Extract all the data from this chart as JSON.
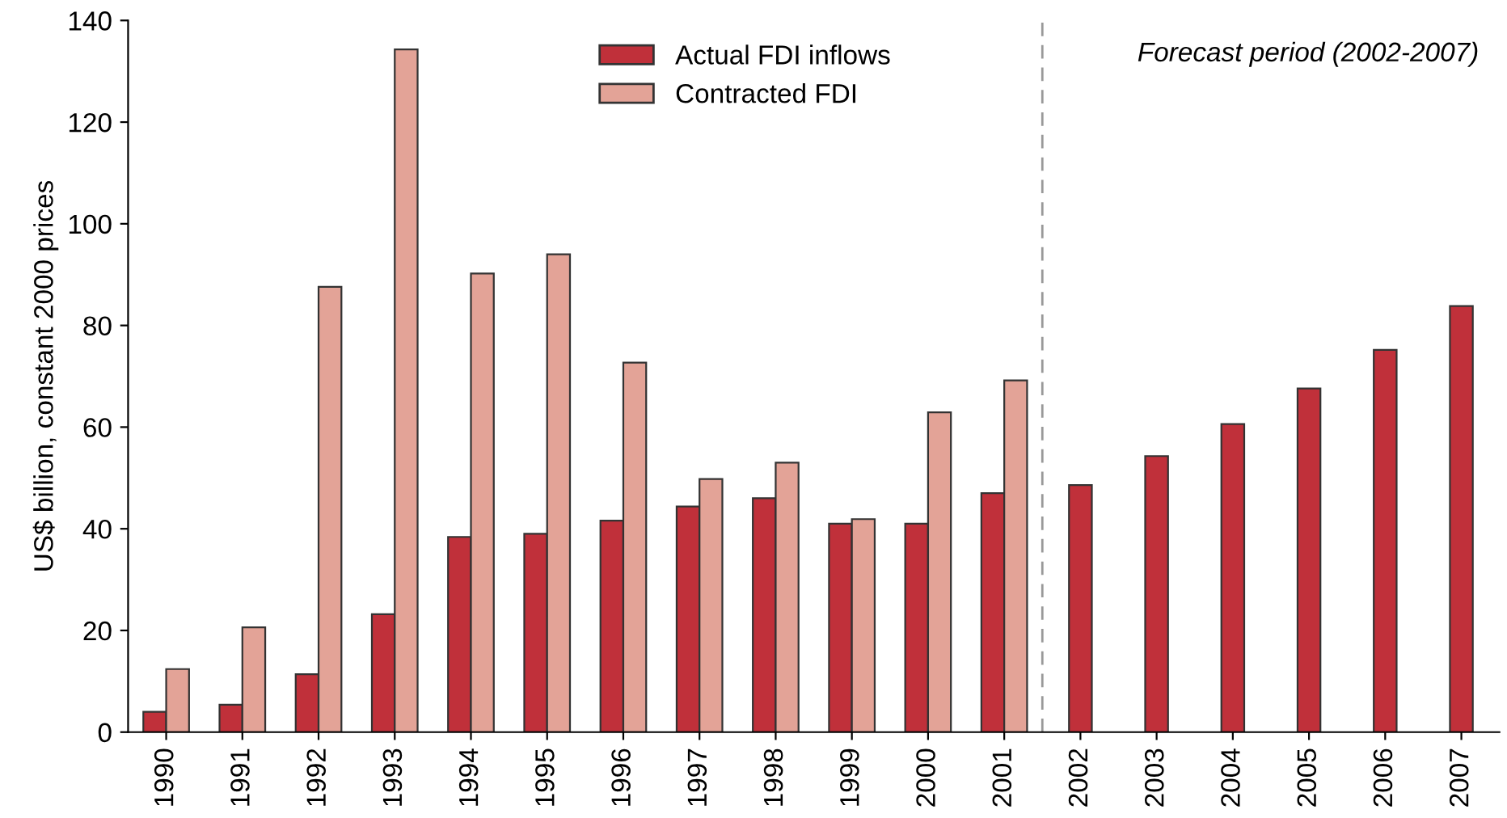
{
  "chart_data": {
    "type": "bar",
    "ylabel": "US$ billion, constant 2000 prices",
    "x": [
      1990,
      1991,
      1992,
      1993,
      1994,
      1995,
      1996,
      1997,
      1998,
      1999,
      2000,
      2001,
      2002,
      2003,
      2004,
      2005,
      2006,
      2007
    ],
    "xlim": [
      1989.5,
      2007.5
    ],
    "xticks": [
      1990,
      1991,
      1992,
      1993,
      1994,
      1995,
      1996,
      1997,
      1998,
      1999,
      2000,
      2001,
      2002,
      2003,
      2004,
      2005,
      2006,
      2007
    ],
    "ylim": [
      0,
      140
    ],
    "yticks": [
      0,
      20,
      40,
      60,
      80,
      100,
      120,
      140
    ],
    "series": [
      {
        "name": "Actual FDI inflows",
        "color": "#c0303a",
        "values": [
          4,
          5.4,
          11.4,
          23.2,
          38.4,
          39,
          41.6,
          44.4,
          46,
          41,
          41,
          47,
          48.6,
          54.3,
          60.6,
          67.6,
          75.2,
          83.8
        ]
      },
      {
        "name": "Contracted FDI",
        "color": "#e3a397",
        "values": [
          12.4,
          20.6,
          87.6,
          134.3,
          90.2,
          94,
          72.7,
          49.8,
          53,
          41.9,
          62.9,
          69.2,
          null,
          null,
          null,
          null,
          null,
          null
        ]
      }
    ],
    "ref_lines": [
      {
        "axis": "x",
        "value": 2001.5,
        "color": "#999999",
        "line_style": "dashed"
      }
    ],
    "annotations": [
      "Forecast period (2002-2007)"
    ],
    "legend": "top",
    "grid": false
  }
}
